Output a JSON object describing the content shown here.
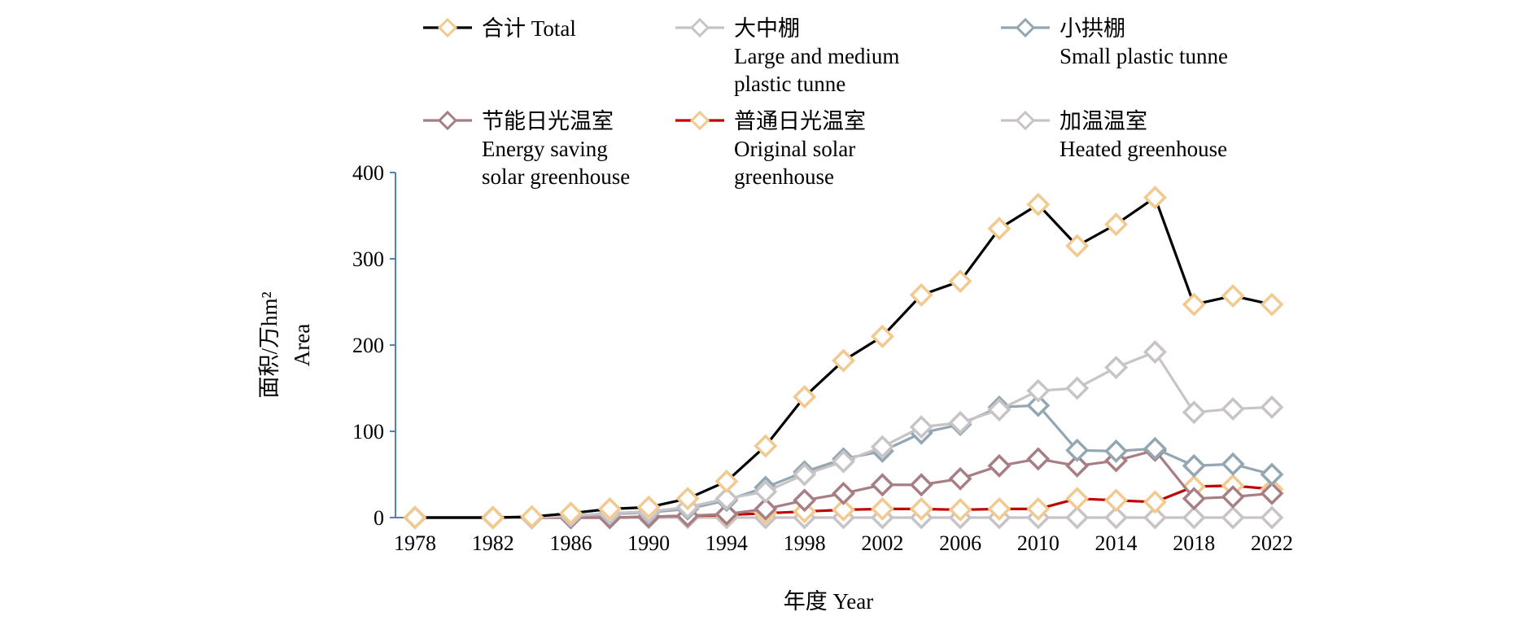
{
  "chart_data": {
    "type": "line",
    "xlabel": "年度  Year",
    "ylabel_lines": [
      "面积/万hm²",
      "Area"
    ],
    "ylim": [
      0,
      400
    ],
    "yticks": [
      0,
      100,
      200,
      300,
      400
    ],
    "xticks": [
      1978,
      1982,
      1986,
      1990,
      1994,
      1998,
      2002,
      2006,
      2010,
      2014,
      2018,
      2022
    ],
    "xlim": [
      1978,
      2022
    ],
    "legend_position": "top",
    "x": [
      1978,
      1982,
      1984,
      1986,
      1988,
      1990,
      1992,
      1994,
      1996,
      1998,
      2000,
      2002,
      2004,
      2006,
      2008,
      2010,
      2012,
      2014,
      2016,
      2018,
      2020,
      2022
    ],
    "series": [
      {
        "name_lines": [
          "合计  Total"
        ],
        "color": "#000000",
        "marker_color": "#f2c98e",
        "values": [
          0,
          0,
          1,
          5,
          10,
          12,
          22,
          42,
          83,
          140,
          182,
          210,
          258,
          274,
          335,
          363,
          315,
          340,
          371,
          247,
          257,
          247
        ]
      },
      {
        "name_lines": [
          "大中棚",
          "Large and medium",
          "plastic tunne"
        ],
        "color": "#c8c3c6",
        "marker_color": "#c8c3c6",
        "values": [
          0,
          0,
          0,
          2,
          5,
          7,
          12,
          22,
          30,
          50,
          65,
          82,
          105,
          110,
          125,
          147,
          150,
          174,
          192,
          122,
          126,
          128
        ]
      },
      {
        "name_lines": [
          "小拱棚",
          "Small plastic tunne"
        ],
        "color": "#93a7b3",
        "marker_color": "#93a7b3",
        "values": [
          0,
          0,
          0,
          2,
          4,
          6,
          10,
          20,
          35,
          53,
          68,
          77,
          98,
          108,
          128,
          130,
          78,
          77,
          80,
          60,
          62,
          50
        ]
      },
      {
        "name_lines": [
          "节能日光温室",
          "Energy saving",
          "solar greenhouse"
        ],
        "color": "#a77e84",
        "marker_color": "#a77e84",
        "values": [
          0,
          0,
          0,
          0,
          0,
          1,
          2,
          4,
          10,
          20,
          28,
          38,
          38,
          45,
          60,
          68,
          60,
          66,
          78,
          22,
          24,
          28
        ]
      },
      {
        "name_lines": [
          "普通日光温室",
          "Original solar",
          "greenhouse"
        ],
        "color": "#c00000",
        "marker_color": "#f2c98e",
        "values": [
          0,
          0,
          0,
          0,
          0,
          1,
          2,
          3,
          5,
          7,
          9,
          10,
          10,
          9,
          10,
          10,
          22,
          20,
          18,
          36,
          37,
          33
        ]
      },
      {
        "name_lines": [
          "加温温室",
          "Heated greenhouse"
        ],
        "color": "#c8c3c6",
        "marker_color": "#c8c3c6",
        "values": [
          0,
          0,
          0,
          0,
          0,
          0,
          0,
          0,
          0,
          0,
          0,
          0,
          0,
          0,
          0,
          0,
          0,
          0,
          0,
          0,
          0,
          0
        ]
      }
    ]
  }
}
